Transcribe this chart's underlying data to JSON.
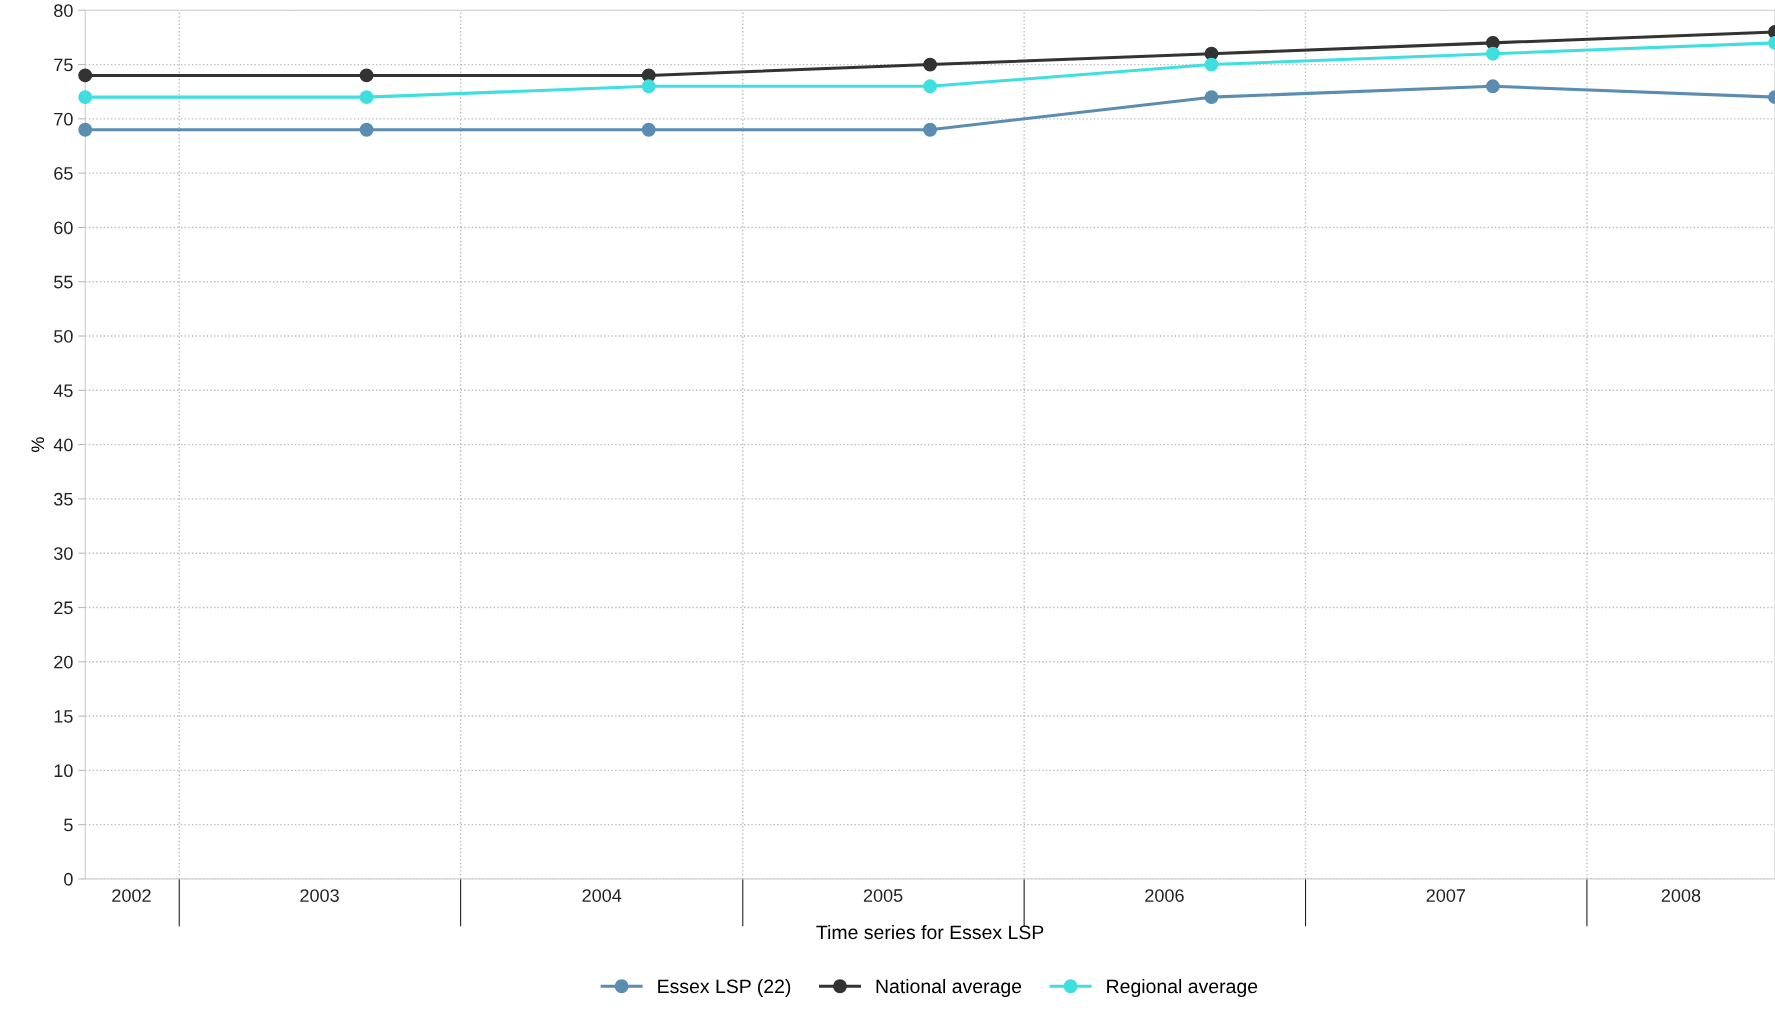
{
  "chart_data": {
    "type": "line",
    "xlabel": "Time series for Essex LSP",
    "ylabel": "%",
    "x": [
      "2002-09-01",
      "2003-09-01",
      "2004-09-01",
      "2005-09-01",
      "2006-09-01",
      "2007-09-01",
      "2008-09-01"
    ],
    "series": [
      {
        "name": "Essex LSP (22)",
        "color": "#5b8db0",
        "values": [
          69,
          69,
          69,
          69,
          72,
          73,
          72
        ]
      },
      {
        "name": "National average",
        "color": "#333333",
        "values": [
          74,
          74,
          74,
          75,
          76,
          77,
          78
        ]
      },
      {
        "name": "Regional average",
        "color": "#40dfdf",
        "values": [
          72,
          72,
          73,
          73,
          75,
          76,
          77
        ]
      }
    ],
    "xlim": [
      "2002-09-01",
      "2008-09-01"
    ],
    "xticks": [
      {
        "value": "2002-10-31",
        "label": "2002"
      },
      {
        "value": "2003-01-01",
        "label": null
      },
      {
        "value": "2003-07-02",
        "label": "2003"
      },
      {
        "value": "2004-01-01",
        "label": null
      },
      {
        "value": "2004-07-02",
        "label": "2004"
      },
      {
        "value": "2005-01-01",
        "label": null
      },
      {
        "value": "2005-07-02",
        "label": "2005"
      },
      {
        "value": "2006-01-01",
        "label": null
      },
      {
        "value": "2006-07-02",
        "label": "2006"
      },
      {
        "value": "2007-01-01",
        "label": null
      },
      {
        "value": "2007-07-02",
        "label": "2007"
      },
      {
        "value": "2008-01-01",
        "label": null
      },
      {
        "value": "2008-05-02",
        "label": "2008"
      }
    ],
    "ylim": [
      0,
      80
    ],
    "yticks": [
      0,
      5,
      10,
      15,
      20,
      25,
      30,
      35,
      40,
      45,
      50,
      55,
      60,
      65,
      70,
      75,
      80
    ],
    "grid": true,
    "legend": "bottom",
    "marker": "circle",
    "line_style": "solid"
  }
}
